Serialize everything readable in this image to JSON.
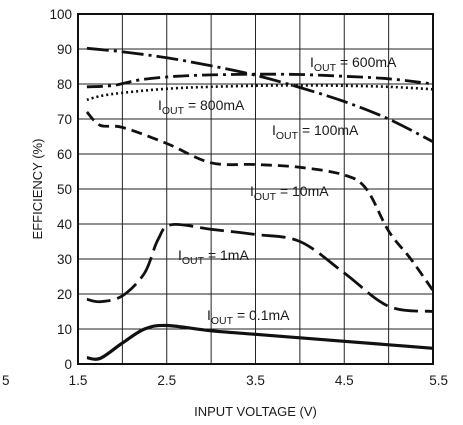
{
  "chart_data": {
    "type": "line",
    "title": "",
    "xlabel": "INPUT VOLTAGE (V)",
    "ylabel": "EFFICIENCY (%)",
    "xlim": [
      1.5,
      5.5
    ],
    "ylim": [
      0,
      100
    ],
    "x_ticks": [
      1.5,
      2.5,
      3.5,
      4.5,
      5.5
    ],
    "x_tick_labels": [
      "1.5",
      "2.5",
      "3.5",
      "4.5",
      "5.5"
    ],
    "y_ticks": [
      0,
      10,
      20,
      30,
      40,
      50,
      60,
      70,
      80,
      90,
      100
    ],
    "y_tick_labels": [
      "0",
      "10",
      "20",
      "30",
      "40",
      "50",
      "60",
      "70",
      "80",
      "90",
      "100"
    ],
    "grid": true,
    "edge_label": "5",
    "series": [
      {
        "name": "600mA",
        "label_main": "I",
        "label_sub": "OUT",
        "label_rest": " = 600mA",
        "dash": "long-dash-dot",
        "points": [
          [
            1.6,
            90.2
          ],
          [
            2.0,
            89.2
          ],
          [
            2.5,
            87.5
          ],
          [
            3.0,
            85.2
          ],
          [
            3.5,
            82.5
          ],
          [
            4.0,
            79.0
          ],
          [
            4.5,
            75.0
          ],
          [
            5.0,
            70.0
          ],
          [
            5.5,
            63.5
          ]
        ]
      },
      {
        "name": "100mA",
        "label_main": "I",
        "label_sub": "OUT",
        "label_rest": " = 100mA",
        "dash": "dash-dot",
        "points": [
          [
            1.6,
            79.2
          ],
          [
            1.9,
            79.6
          ],
          [
            2.2,
            81.2
          ],
          [
            2.6,
            82.2
          ],
          [
            3.0,
            82.6
          ],
          [
            3.5,
            82.8
          ],
          [
            4.0,
            82.7
          ],
          [
            4.5,
            82.2
          ],
          [
            5.0,
            81.5
          ],
          [
            5.5,
            80.0
          ]
        ]
      },
      {
        "name": "800mA",
        "label_main": "I",
        "label_sub": "OUT",
        "label_rest": " = 800mA",
        "dash": "dotted",
        "points": [
          [
            1.6,
            75.5
          ],
          [
            1.8,
            76.8
          ],
          [
            2.2,
            78.0
          ],
          [
            2.6,
            78.8
          ],
          [
            3.0,
            79.2
          ],
          [
            3.5,
            79.5
          ],
          [
            4.0,
            79.6
          ],
          [
            4.5,
            79.5
          ],
          [
            5.0,
            79.2
          ],
          [
            5.5,
            78.5
          ]
        ]
      },
      {
        "name": "10mA",
        "label_main": "I",
        "label_sub": "OUT",
        "label_rest": " = 10mA",
        "dash": "dashed",
        "points": [
          [
            1.6,
            72.0
          ],
          [
            1.75,
            68.2
          ],
          [
            2.0,
            67.6
          ],
          [
            2.5,
            63.0
          ],
          [
            3.0,
            57.5
          ],
          [
            3.5,
            57.0
          ],
          [
            4.0,
            56.2
          ],
          [
            4.5,
            54.0
          ],
          [
            4.75,
            50.0
          ],
          [
            5.0,
            38.0
          ],
          [
            5.25,
            30.0
          ],
          [
            5.5,
            21.0
          ]
        ]
      },
      {
        "name": "1mA",
        "label_main": "I",
        "label_sub": "OUT",
        "label_rest": " = 1mA",
        "dash": "long-dash",
        "points": [
          [
            1.6,
            18.5
          ],
          [
            1.75,
            17.8
          ],
          [
            2.0,
            19.5
          ],
          [
            2.25,
            26.0
          ],
          [
            2.4,
            35.5
          ],
          [
            2.55,
            39.8
          ],
          [
            3.0,
            38.5
          ],
          [
            3.5,
            37.0
          ],
          [
            4.0,
            35.0
          ],
          [
            4.5,
            26.0
          ],
          [
            5.0,
            16.5
          ],
          [
            5.5,
            15.0
          ]
        ]
      },
      {
        "name": "0.1mA",
        "label_main": "I",
        "label_sub": "OUT",
        "label_rest": " = 0.1mA",
        "dash": "solid",
        "points": [
          [
            1.6,
            1.8
          ],
          [
            1.75,
            1.6
          ],
          [
            2.0,
            6.0
          ],
          [
            2.25,
            10.0
          ],
          [
            2.5,
            11.0
          ],
          [
            3.0,
            9.5
          ],
          [
            3.5,
            8.5
          ],
          [
            4.0,
            7.5
          ],
          [
            4.5,
            6.5
          ],
          [
            5.0,
            5.5
          ],
          [
            5.5,
            4.5
          ]
        ]
      }
    ]
  }
}
